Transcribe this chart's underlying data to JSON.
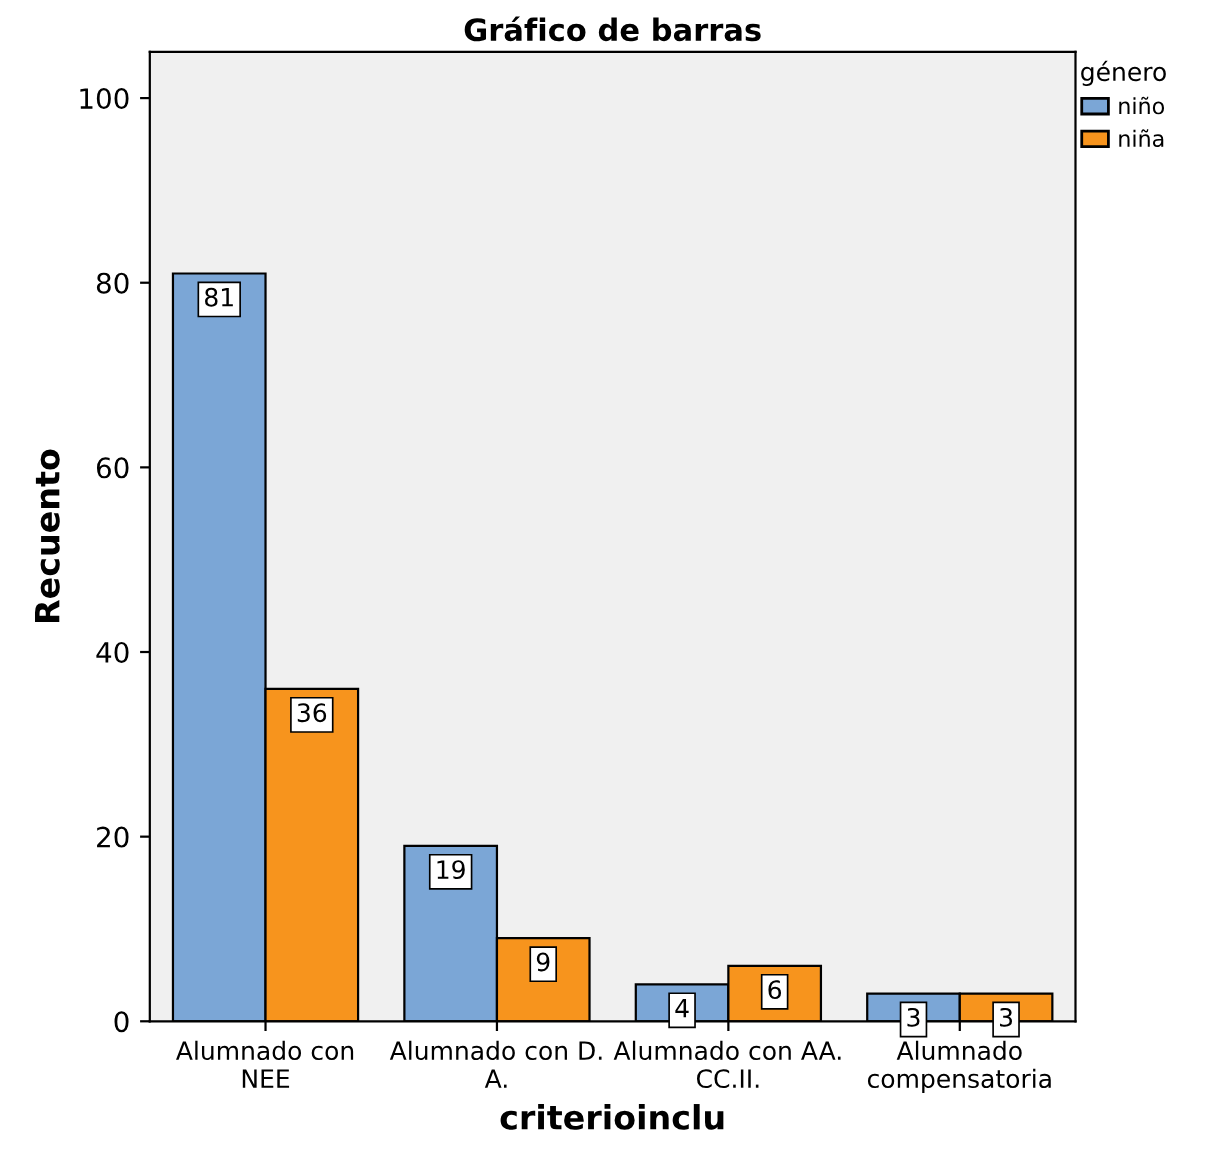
{
  "chart_data": {
    "type": "bar",
    "title": "Gráfico de barras",
    "xlabel": "criterioinclu",
    "ylabel": "Recuento",
    "legend_title": "género",
    "categories": [
      "Alumnado con\nNEE",
      "Alumnado con D.\nA.",
      "Alumnado con AA.\nCC.II.",
      "Alumnado\ncompensatoria"
    ],
    "series": [
      {
        "name": "niño",
        "color": "#7ba6d6",
        "values": [
          81,
          19,
          4,
          3
        ]
      },
      {
        "name": "niña",
        "color": "#f7941d",
        "values": [
          36,
          9,
          6,
          3
        ]
      }
    ],
    "ylim": [
      0,
      105
    ],
    "yticks": [
      0,
      20,
      40,
      60,
      80,
      100
    ],
    "grid": false,
    "legend": "top right",
    "data_labels": true
  }
}
